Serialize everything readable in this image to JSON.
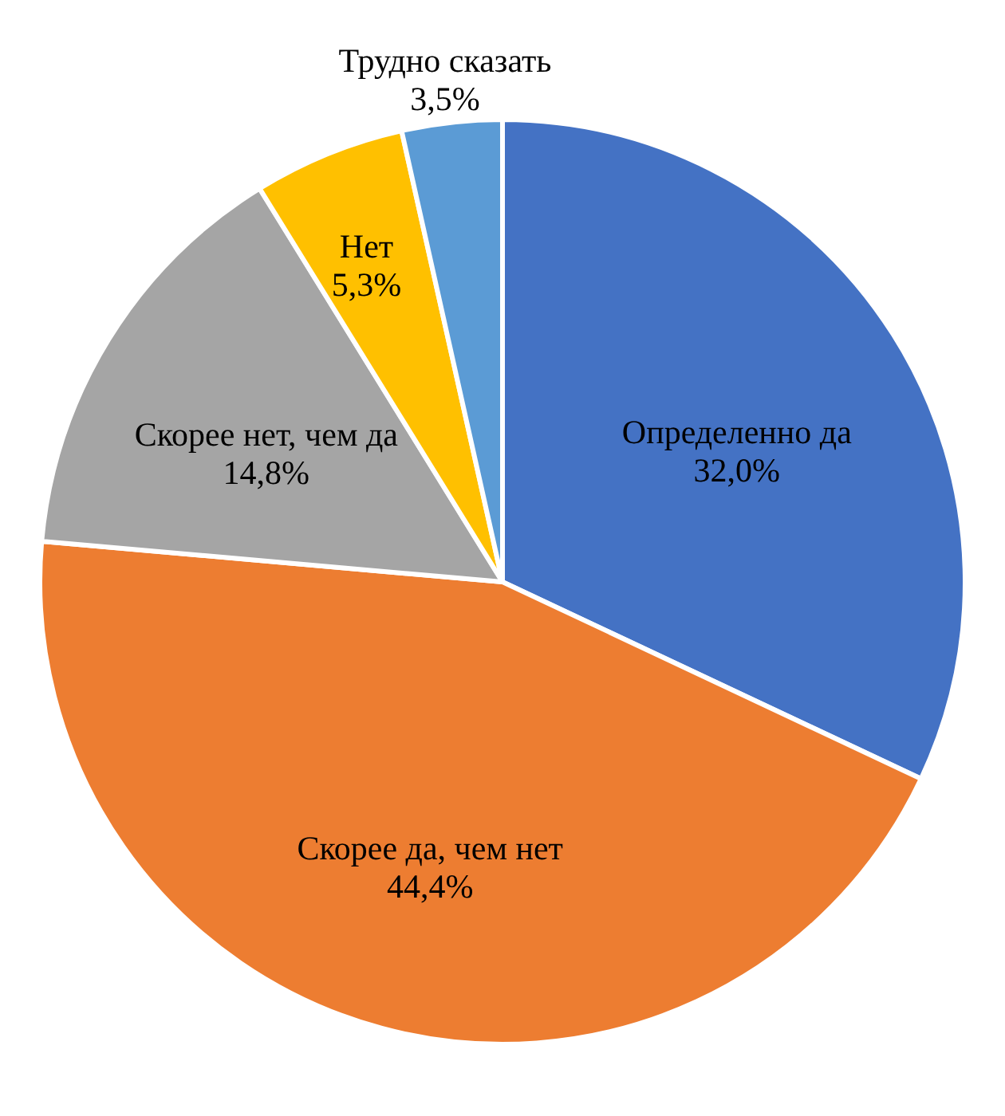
{
  "chart_data": {
    "type": "pie",
    "categories": [
      "Определенно да",
      "Скорее да, чем нет",
      "Скорее нет, чем да",
      "Нет",
      "Трудно сказать"
    ],
    "values": [
      32.0,
      44.4,
      14.8,
      5.3,
      3.5
    ],
    "value_labels": [
      "32,0%",
      "44,4%",
      "14,8%",
      "5,3%",
      "3,5%"
    ],
    "colors": [
      "#4472c4",
      "#ed7d31",
      "#a5a5a5",
      "#ffc000",
      "#5b9bd5"
    ]
  }
}
